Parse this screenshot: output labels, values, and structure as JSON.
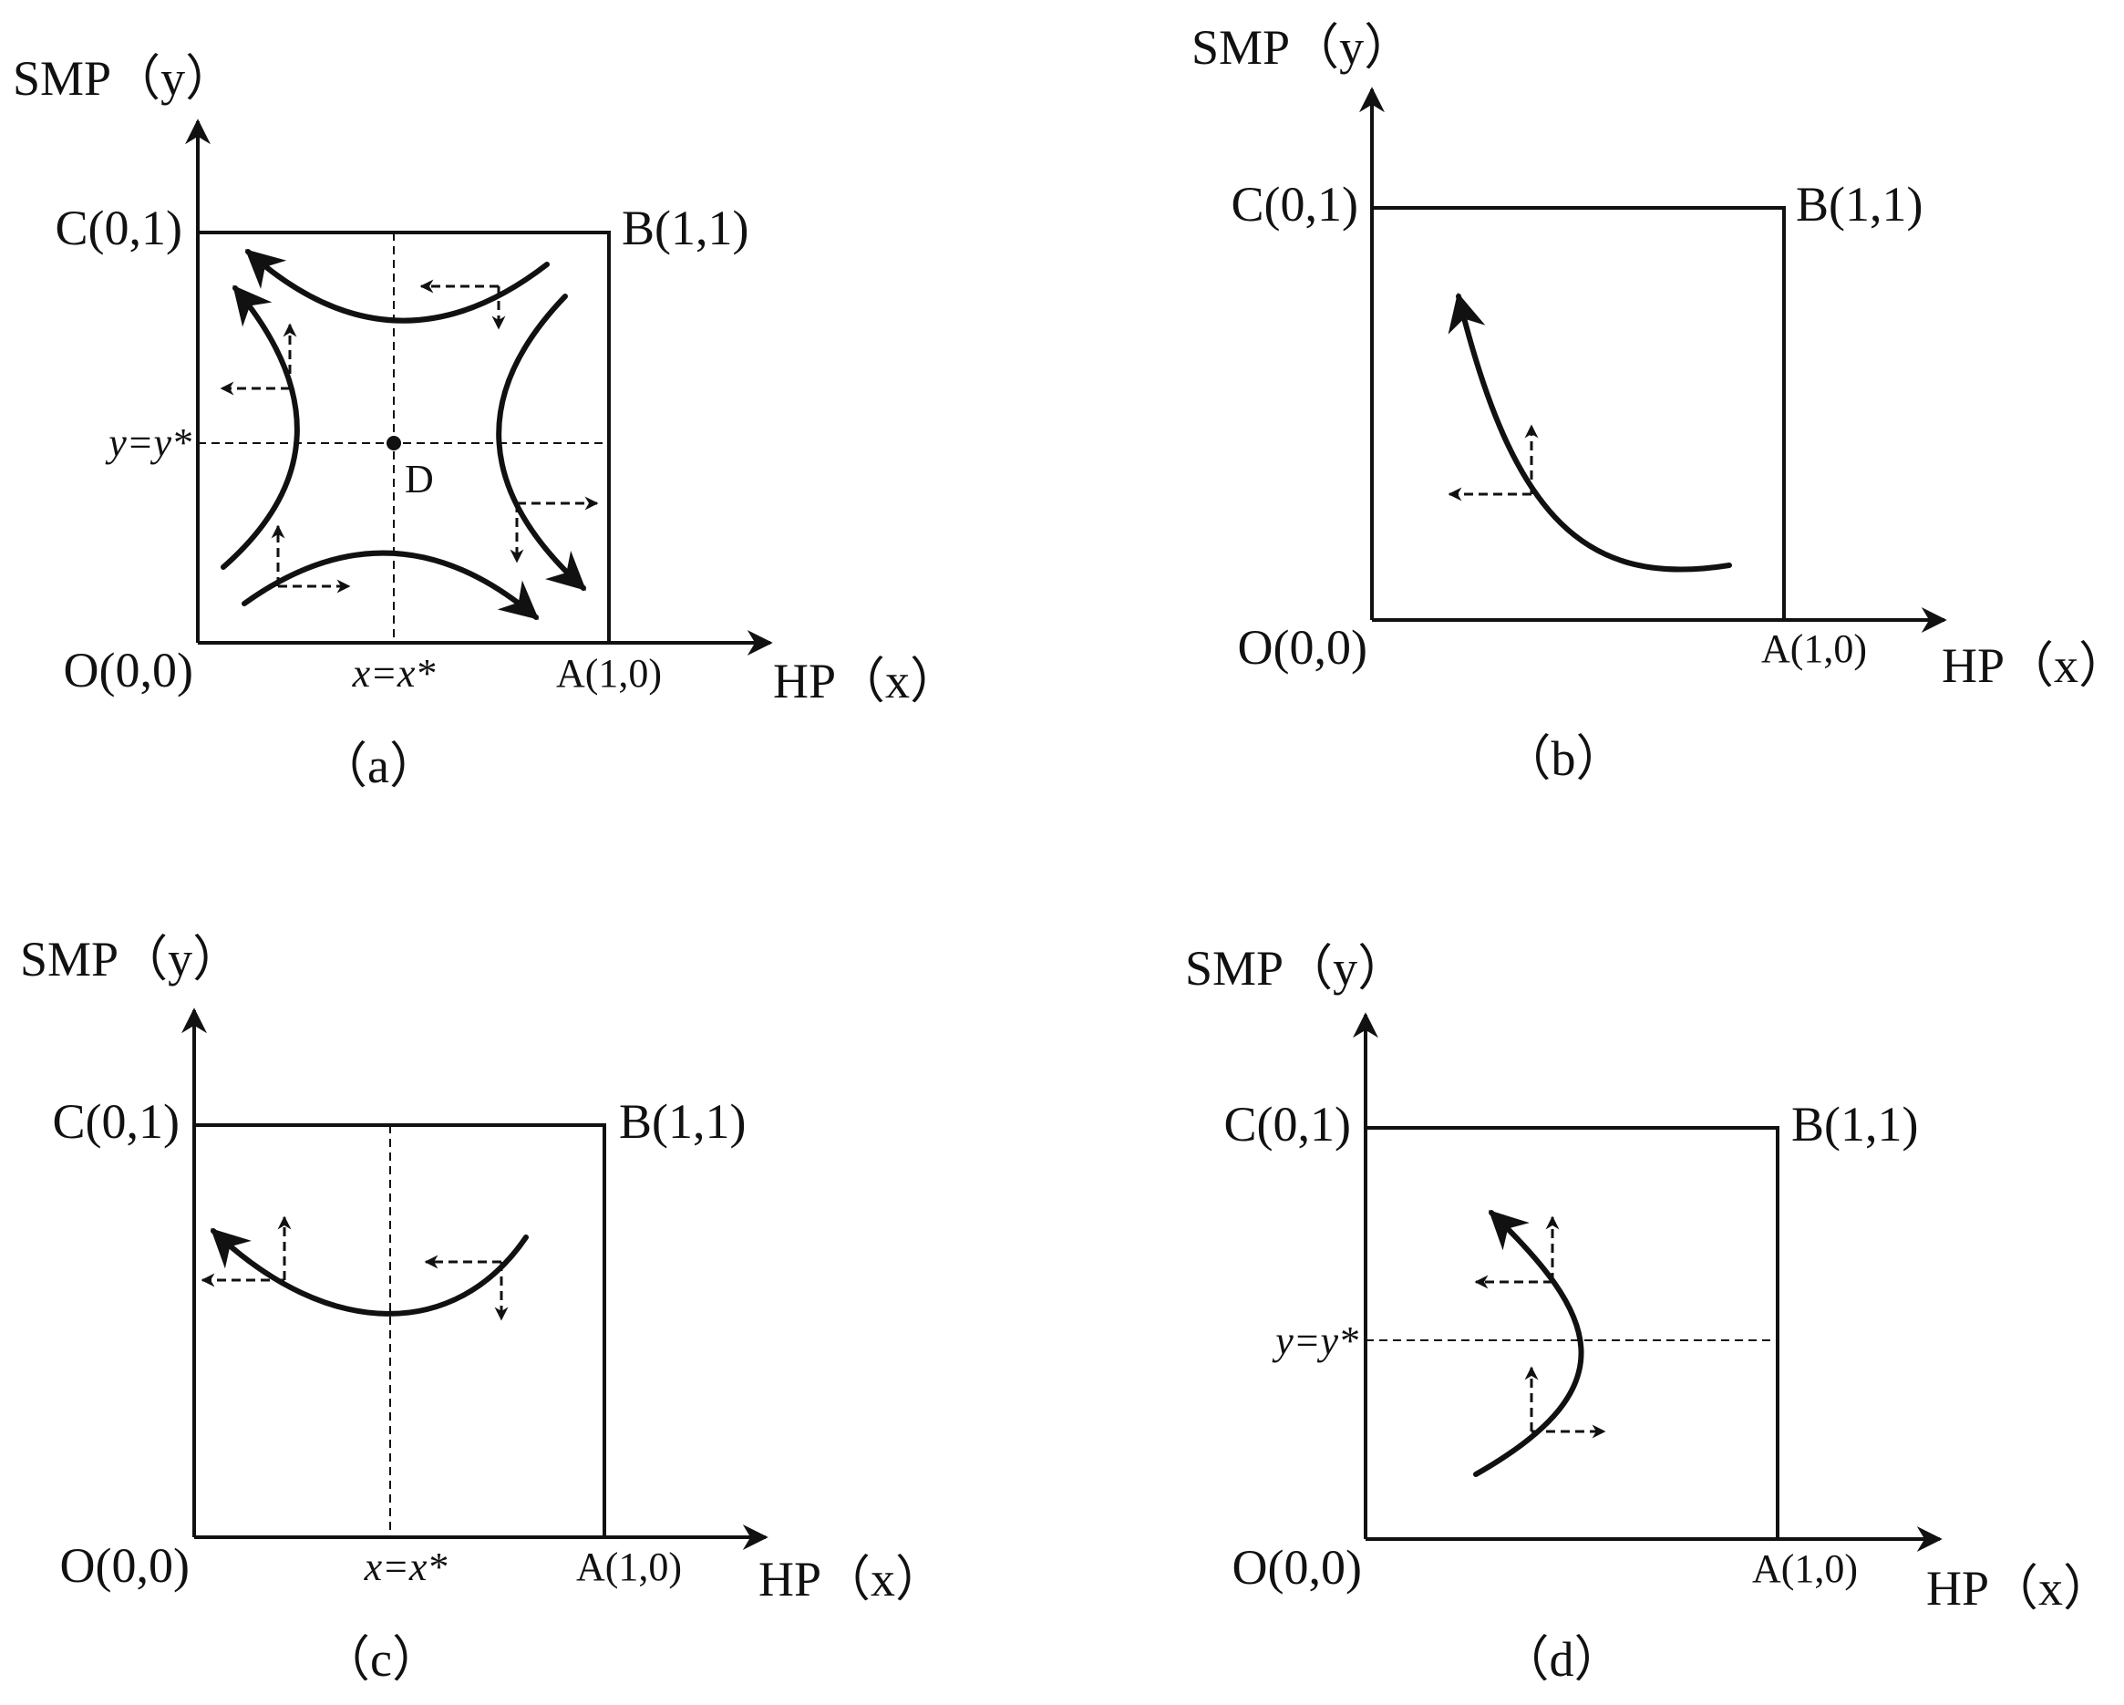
{
  "panels": [
    {
      "id": "a",
      "caption": "（a）",
      "y_axis": "SMP（y）",
      "x_axis": "HP（x）",
      "origin": "O(0,0)",
      "corner_a": "A(1,0)",
      "corner_b": "B(1,1)",
      "corner_c": "C(0,1)",
      "x_guide": "x=x*",
      "y_guide": "y=y*",
      "point_d": "D"
    },
    {
      "id": "b",
      "caption": "（b）",
      "y_axis": "SMP（y）",
      "x_axis": "HP（x）",
      "origin": "O(0,0)",
      "corner_a": "A(1,0)",
      "corner_b": "B(1,1)",
      "corner_c": "C(0,1)"
    },
    {
      "id": "c",
      "caption": "（c）",
      "y_axis": "SMP（y）",
      "x_axis": "HP（x）",
      "origin": "O(0,0)",
      "corner_a": "A(1,0)",
      "corner_b": "B(1,1)",
      "corner_c": "C(0,1)",
      "x_guide": "x=x*"
    },
    {
      "id": "d",
      "caption": "（d）",
      "y_axis": "SMP（y）",
      "x_axis": "HP（x）",
      "origin": "O(0,0)",
      "corner_a": "A(1,0)",
      "corner_b": "B(1,1)",
      "corner_c": "C(0,1)",
      "y_guide": "y=y*"
    }
  ]
}
